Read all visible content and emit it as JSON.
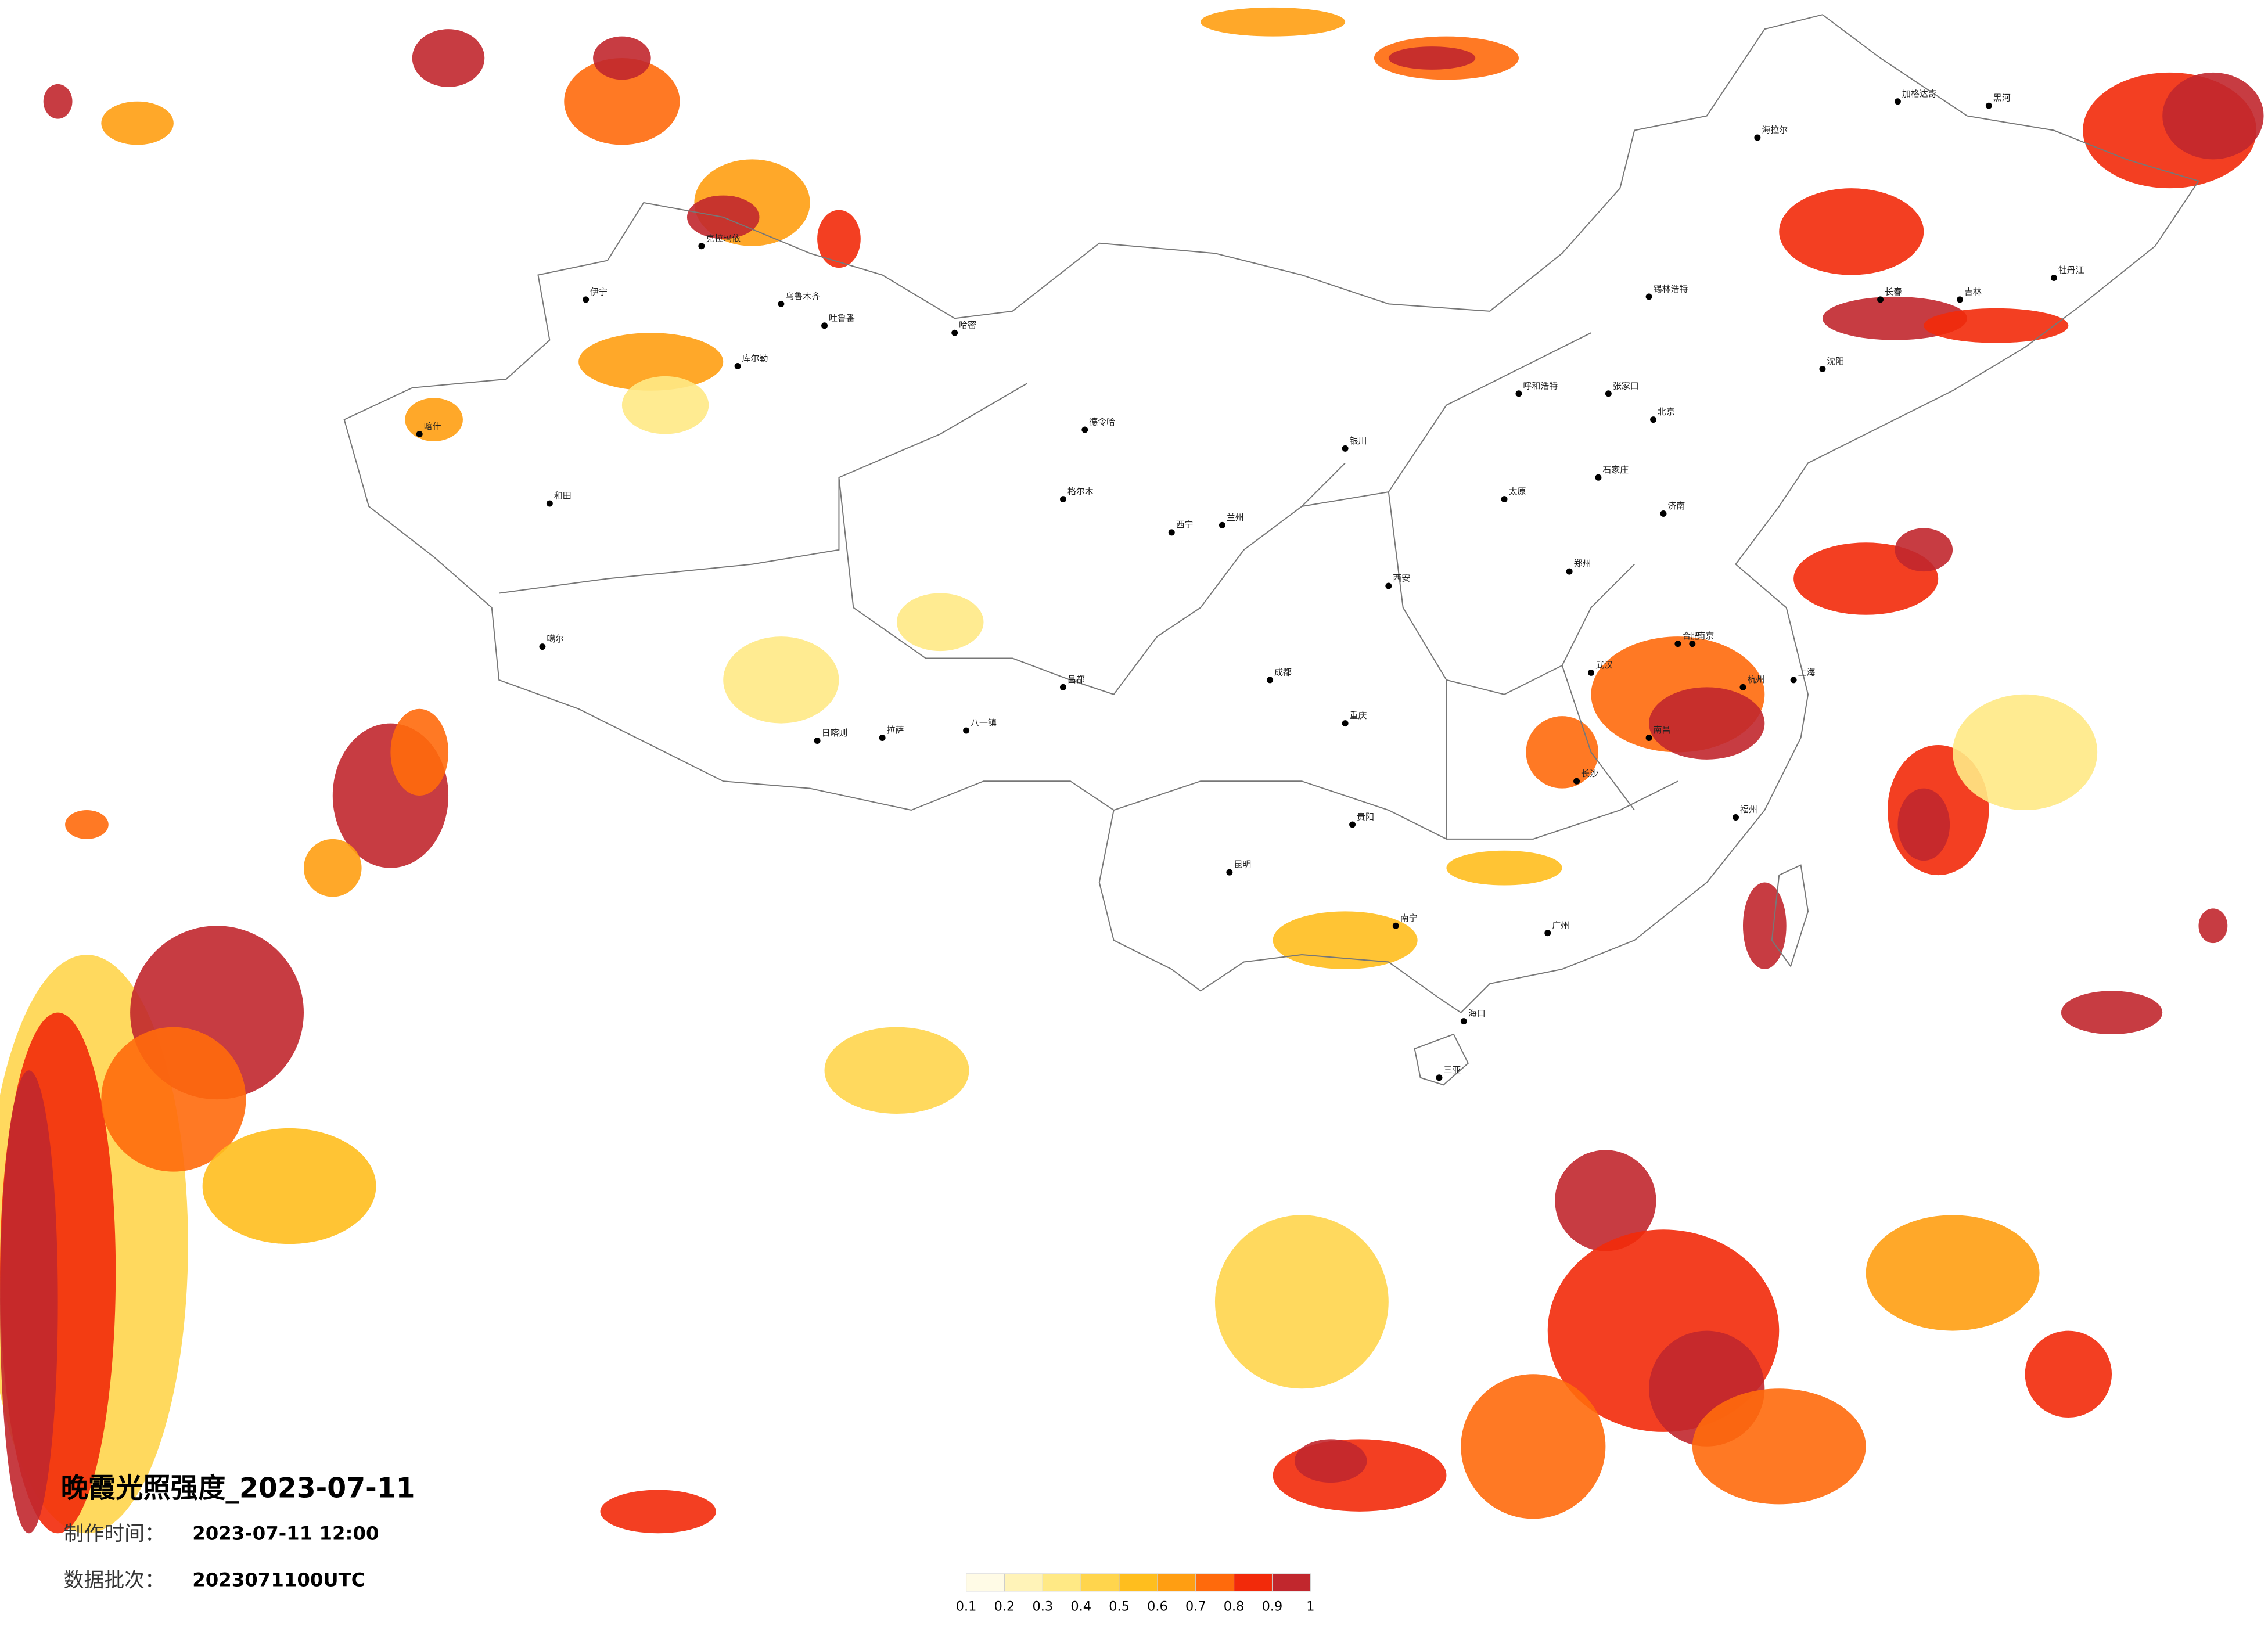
{
  "map": {
    "title": "晚霞光照强度_2023-07-11",
    "production_time_label": "制作时间：",
    "production_time": "2023-07-11 12:00",
    "batch_label": "数据批次：",
    "batch": "2023071100UTC",
    "colorbar": {
      "ticks": [
        0.1,
        0.2,
        0.3,
        0.4,
        0.5,
        0.6,
        0.7,
        0.8,
        0.9,
        1
      ],
      "colors": [
        "#fffbe6",
        "#fff3b8",
        "#ffe985",
        "#ffd54d",
        "#ffbe1e",
        "#ff9e12",
        "#ff6a0c",
        "#f22a0a",
        "#c1272d"
      ]
    },
    "cities": [
      "海拉尔",
      "加格达奇",
      "黑河",
      "长春",
      "吉林",
      "牡丹江",
      "锡林浩特",
      "呼和浩特",
      "张家口",
      "北京",
      "石家庄",
      "济南",
      "郑州",
      "西安",
      "兰州",
      "西宁",
      "拉萨",
      "日喀则",
      "八一镇",
      "昌都",
      "成都",
      "重庆",
      "昆明",
      "贵阳",
      "南宁",
      "广州",
      "海口",
      "三亚",
      "福州",
      "杭州",
      "南京",
      "上海",
      "乌鲁木齐",
      "克拉玛依",
      "伊宁",
      "喀什",
      "和田",
      "库尔勒",
      "哈密",
      "吐鲁番",
      "格尔木",
      "噶尔",
      "银川",
      "德令哈",
      "长沙",
      "南昌",
      "武汉",
      "合肥",
      "太原",
      "沈阳"
    ]
  }
}
